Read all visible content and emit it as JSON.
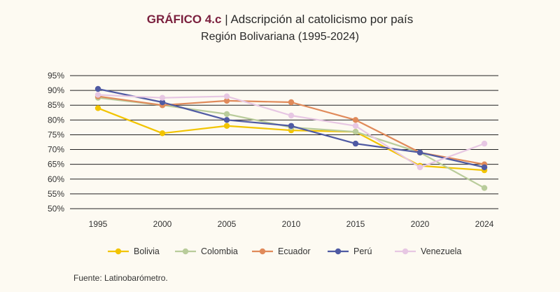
{
  "chart_data": {
    "type": "line",
    "title_label": "GRÁFICO 4.c",
    "title_separator": "|",
    "title": "Adscripción al catolicismo por país",
    "subtitle": "Región Bolivariana (1995-2024)",
    "x": [
      "1995",
      "2000",
      "2005",
      "2010",
      "2015",
      "2020",
      "2024"
    ],
    "y_ticks": [
      "95%",
      "90%",
      "85%",
      "80%",
      "75%",
      "70%",
      "65%",
      "60%",
      "55%",
      "50%"
    ],
    "ylim": [
      50,
      95
    ],
    "grid": true,
    "legend_position": "bottom",
    "series": [
      {
        "name": "Bolivia",
        "color": "#f2c400",
        "values": [
          84,
          75.5,
          78,
          76.5,
          76,
          64.5,
          63
        ]
      },
      {
        "name": "Colombia",
        "color": "#b9cc9b",
        "values": [
          87.5,
          85,
          82,
          77.5,
          76,
          69,
          57
        ]
      },
      {
        "name": "Ecuador",
        "color": "#e08a5a",
        "values": [
          88,
          85,
          86.5,
          86,
          80,
          69,
          65
        ]
      },
      {
        "name": "Perú",
        "color": "#4f5aa3",
        "values": [
          90.5,
          86,
          80,
          78,
          72,
          69,
          64
        ]
      },
      {
        "name": "Venezuela",
        "color": "#e7c7e3",
        "values": [
          88.5,
          87.5,
          88,
          81.5,
          78,
          64,
          72
        ]
      }
    ],
    "source": "Fuente: Latinobarómetro."
  }
}
